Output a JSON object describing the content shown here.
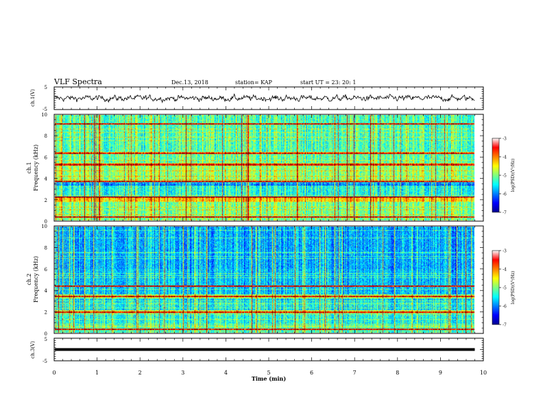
{
  "header": {
    "title": "VLF Spectra",
    "date": "Dec.13, 2018",
    "station": "station= KAP",
    "start": "start  UT  =   23: 20: 1"
  },
  "chart_data": [
    {
      "type": "line",
      "ylabel": "ch.1(V)",
      "ylim": [
        -5,
        5
      ],
      "yticks": [
        "5",
        "-5"
      ],
      "xlim": [
        0,
        10
      ],
      "color": "#000000",
      "amplitude_range": [
        -2,
        2
      ]
    },
    {
      "type": "heatmap",
      "ylabel": "ch.1\nFrequency (kHz)",
      "xlim": [
        0,
        10
      ],
      "ylim": [
        0,
        10
      ],
      "yticks": [
        "0",
        "2",
        "4",
        "6",
        "8",
        "10"
      ],
      "data_x_extent": [
        0,
        9.8
      ],
      "colorbar": {
        "label": "log(PSD)(V²/Hz)",
        "range": [
          -7,
          -3
        ],
        "ticks": [
          "-3",
          "-4",
          "-5",
          "-6",
          "-7"
        ]
      },
      "base_level_by_frequency_kHz": [
        {
          "f": [
            0.0,
            0.4
          ],
          "level": -5.0
        },
        {
          "f": [
            0.4,
            1.8
          ],
          "level": -5.0
        },
        {
          "f": [
            1.8,
            2.2
          ],
          "level": -4.3
        },
        {
          "f": [
            2.2,
            3.3
          ],
          "level": -5.4
        },
        {
          "f": [
            3.3,
            3.7
          ],
          "level": -6.1
        },
        {
          "f": [
            3.7,
            5.2
          ],
          "level": -4.9
        },
        {
          "f": [
            5.2,
            5.4
          ],
          "level": -3.6
        },
        {
          "f": [
            5.4,
            6.3
          ],
          "level": -5.1
        },
        {
          "f": [
            6.3,
            6.5
          ],
          "level": -4.2
        },
        {
          "f": [
            6.5,
            10.0
          ],
          "level": -5.2
        }
      ],
      "strong_lines_kHz": [
        0.3,
        2.2,
        3.7,
        5.3,
        6.4,
        9.2
      ]
    },
    {
      "type": "heatmap",
      "ylabel": "ch.2\nFrequency (kHz)",
      "xlim": [
        0,
        10
      ],
      "ylim": [
        0,
        10
      ],
      "yticks": [
        "0",
        "2",
        "4",
        "6",
        "8",
        "10"
      ],
      "data_x_extent": [
        0,
        9.8
      ],
      "colorbar": {
        "label": "log(PSD)(V²/Hz)",
        "range": [
          -7,
          -3
        ],
        "ticks": [
          "-3",
          "-4",
          "-5",
          "-6",
          "-7"
        ]
      },
      "base_level_by_frequency_kHz": [
        {
          "f": [
            0.0,
            0.5
          ],
          "level": -5.2
        },
        {
          "f": [
            0.5,
            1.8
          ],
          "level": -5.4
        },
        {
          "f": [
            1.8,
            2.1
          ],
          "level": -4.6
        },
        {
          "f": [
            2.1,
            3.2
          ],
          "level": -5.6
        },
        {
          "f": [
            3.2,
            3.6
          ],
          "level": -4.8
        },
        {
          "f": [
            3.6,
            6.0
          ],
          "level": -5.7
        },
        {
          "f": [
            6.0,
            10.0
          ],
          "level": -5.8
        }
      ],
      "strong_lines_kHz": [
        0.3,
        1.9,
        3.4,
        4.4
      ]
    },
    {
      "type": "line",
      "ylabel": "ch.3(V)",
      "ylim": [
        -5,
        5
      ],
      "yticks": [
        "5",
        "-5"
      ],
      "xlim": [
        0,
        10
      ],
      "constant_value": 0,
      "color": "#000000"
    }
  ],
  "xaxis": {
    "label": "Time  (min)",
    "ticks": [
      "0",
      "1",
      "2",
      "3",
      "4",
      "5",
      "6",
      "7",
      "8",
      "9",
      "10"
    ]
  }
}
